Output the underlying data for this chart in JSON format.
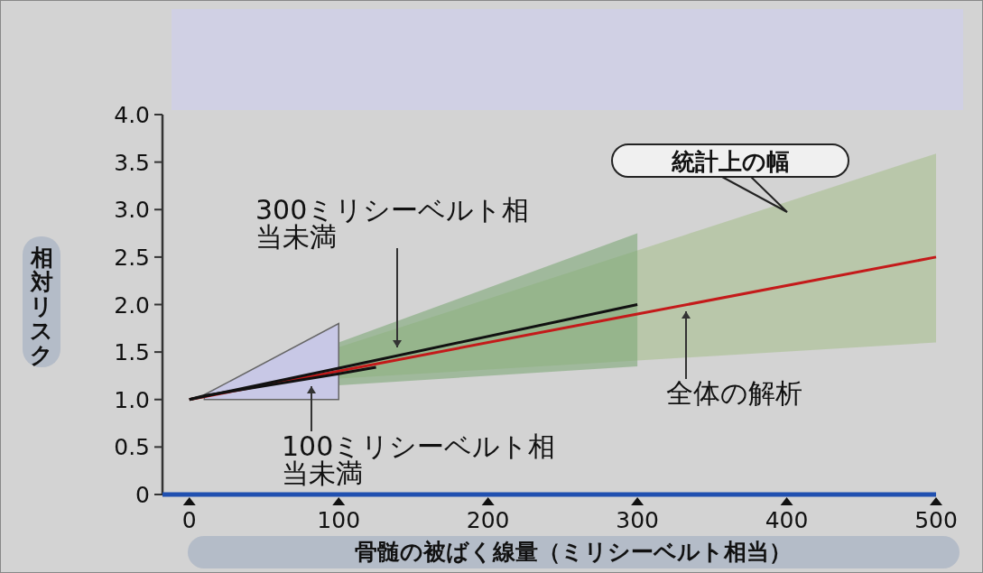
{
  "chart_data": {
    "type": "line",
    "xlabel": "骨髄の被ばく線量（ミリシーベルト相当）",
    "ylabel": "相対リスク",
    "xlim": [
      -18,
      500
    ],
    "ylim": [
      0,
      4
    ],
    "xticks": [
      0,
      100,
      200,
      300,
      400,
      500
    ],
    "yticks": [
      0,
      {
        "value": 0.5,
        "label": "0.5"
      },
      {
        "value": 1,
        "label": "1.0"
      },
      {
        "value": 1.5,
        "label": "1.5"
      },
      {
        "value": 2,
        "label": "2.0"
      },
      {
        "value": 2.5,
        "label": "2.5"
      },
      {
        "value": 3,
        "label": "3.0"
      },
      {
        "value": 3.5,
        "label": "3.5"
      },
      {
        "value": 4,
        "label": "4.0"
      }
    ],
    "grid": false,
    "marker": "none",
    "line_style": "solid",
    "annotations": [
      "統計上の幅"
    ],
    "series": [
      {
        "name": "全体の解析",
        "color": "#c41a1a",
        "x": [
          0,
          100,
          300,
          500
        ],
        "values": [
          1.0,
          1.3,
          1.9,
          2.5
        ],
        "lower": [
          null,
          1.22,
          1.41,
          1.6
        ],
        "upper": [
          null,
          1.55,
          2.57,
          3.59
        ]
      },
      {
        "name": "300ミリシーベルト相当未満",
        "color": "#111111",
        "x": [
          0,
          100,
          300
        ],
        "values": [
          1.0,
          1.33,
          2.0
        ],
        "lower": [
          null,
          1.15,
          1.35
        ],
        "upper": [
          null,
          1.6,
          2.75
        ]
      },
      {
        "name": "100ミリシーベルト相当未満",
        "color": "#111111",
        "x": [
          0,
          10,
          100,
          125
        ],
        "values": [
          1.0,
          1.04,
          1.27,
          1.34
        ],
        "lower": [
          null,
          1.0,
          1.0,
          null
        ],
        "upper": [
          null,
          1.05,
          1.8,
          null
        ]
      }
    ]
  }
}
